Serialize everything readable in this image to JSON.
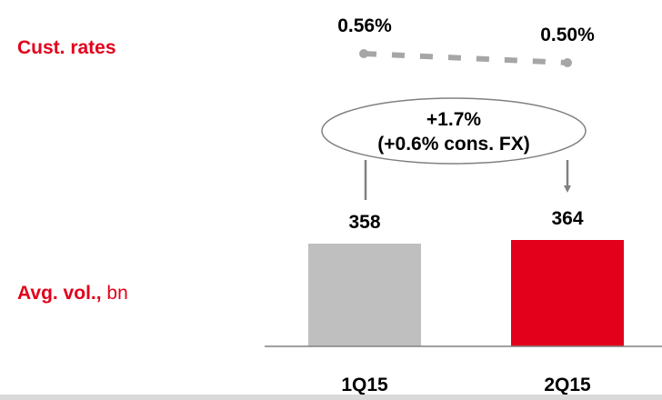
{
  "rates_label": "Cust. rates",
  "volume_label_bold": "Avg. vol.,",
  "volume_label_unit": "bn",
  "change_annotation": {
    "line1": "+1.7%",
    "line2": "(+0.6% cons. FX)"
  },
  "colors": {
    "accent": "#e2001a",
    "first_bar": "#bfbfbf",
    "rate_line": "#a6a6a6",
    "axis": "#808080"
  },
  "chart_data": {
    "type": "bar",
    "categories": [
      "1Q15",
      "2Q15"
    ],
    "values": [
      358,
      364
    ],
    "value_labels": [
      "358",
      "364"
    ],
    "bar_colors": [
      "#bfbfbf",
      "#e2001a"
    ],
    "rates": {
      "type": "line",
      "values": [
        0.56,
        0.5
      ],
      "labels": [
        "0.56%",
        "0.50%"
      ],
      "style": "dashed"
    },
    "title": "",
    "xlabel": "",
    "ylabel": ""
  }
}
